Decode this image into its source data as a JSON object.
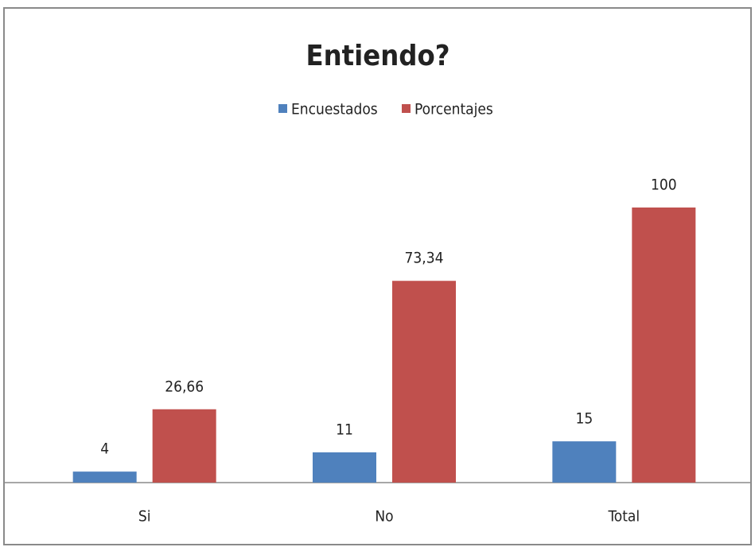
{
  "chart_data": {
    "type": "bar",
    "title": "Entiendo?",
    "categories": [
      "Si",
      "No",
      "Total"
    ],
    "series": [
      {
        "name": "Encuestados",
        "color": "#4f81bd",
        "values": [
          4,
          11,
          15
        ]
      },
      {
        "name": "Porcentajes",
        "color": "#c0504d",
        "values": [
          26.66,
          73.34,
          100
        ],
        "value_labels": [
          "26,66",
          "73,34",
          "100"
        ]
      }
    ],
    "ylim": [
      0,
      100
    ]
  }
}
